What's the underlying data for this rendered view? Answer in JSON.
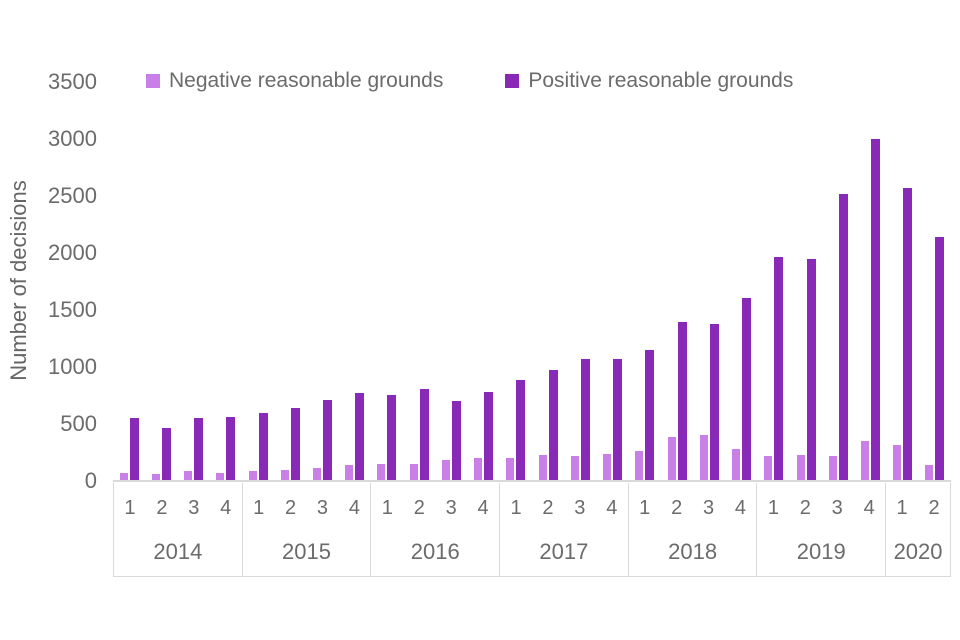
{
  "chart_data": {
    "type": "bar",
    "title": "",
    "ylabel": "Number of decisions",
    "xlabel": "",
    "ylim": [
      0,
      3500
    ],
    "yticks": [
      0,
      500,
      1000,
      1500,
      2000,
      2500,
      3000,
      3500
    ],
    "grid": false,
    "legend_position": "top",
    "groups": [
      {
        "year": "2014",
        "quarters": [
          "1",
          "2",
          "3",
          "4"
        ]
      },
      {
        "year": "2015",
        "quarters": [
          "1",
          "2",
          "3",
          "4"
        ]
      },
      {
        "year": "2016",
        "quarters": [
          "1",
          "2",
          "3",
          "4"
        ]
      },
      {
        "year": "2017",
        "quarters": [
          "1",
          "2",
          "3",
          "4"
        ]
      },
      {
        "year": "2018",
        "quarters": [
          "1",
          "2",
          "3",
          "4"
        ]
      },
      {
        "year": "2019",
        "quarters": [
          "1",
          "2",
          "3",
          "4"
        ]
      },
      {
        "year": "2020",
        "quarters": [
          "1",
          "2"
        ]
      }
    ],
    "series": [
      {
        "name": "Negative reasonable grounds",
        "color": "#c97fe8",
        "values": [
          60,
          55,
          75,
          65,
          80,
          85,
          105,
          130,
          140,
          140,
          175,
          190,
          190,
          220,
          215,
          230,
          255,
          380,
          395,
          275,
          210,
          220,
          210,
          345,
          305,
          130
        ]
      },
      {
        "name": "Positive reasonable grounds",
        "color": "#8929b8",
        "values": [
          545,
          460,
          540,
          550,
          590,
          630,
          705,
          765,
          745,
          800,
          690,
          775,
          875,
          965,
          1060,
          1060,
          1140,
          1390,
          1365,
          1595,
          1955,
          1935,
          2510,
          2995,
          2565,
          2130
        ]
      }
    ]
  }
}
